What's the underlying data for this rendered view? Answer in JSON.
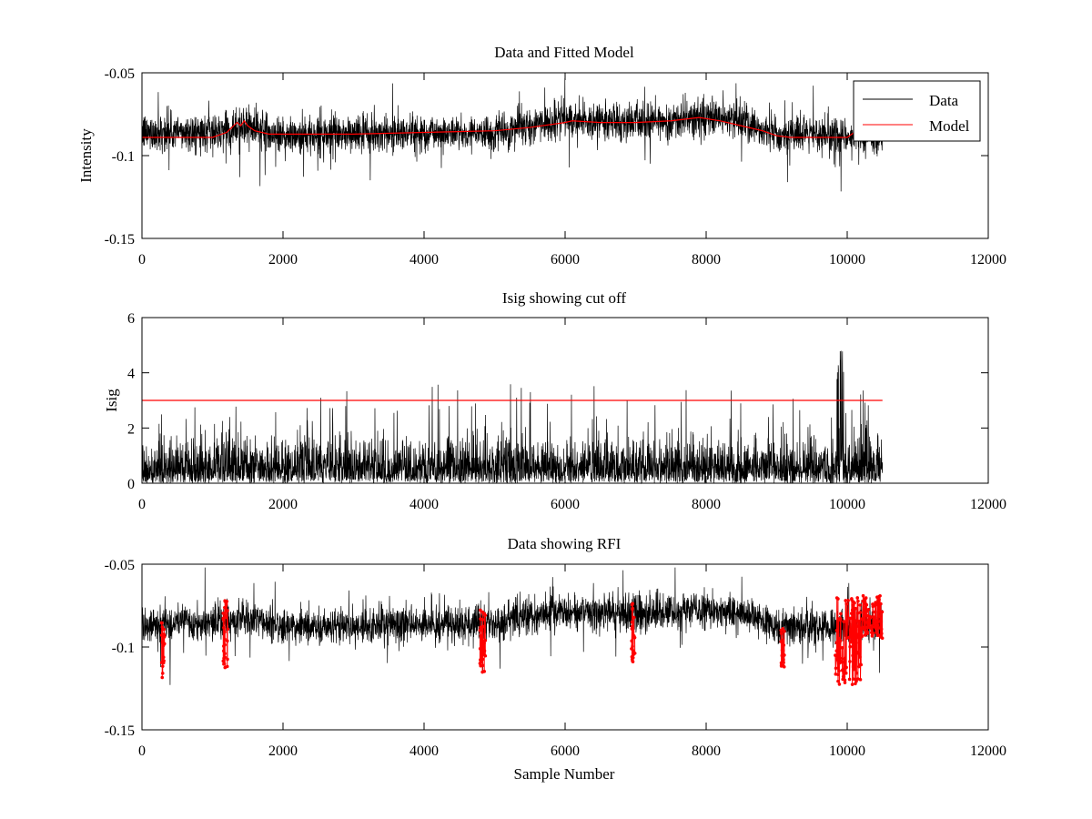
{
  "chart_data": [
    {
      "type": "line",
      "title": "Data and Fitted Model",
      "xlabel": "",
      "ylabel": "Intensity",
      "xlim": [
        0,
        12000
      ],
      "ylim": [
        -0.15,
        -0.05
      ],
      "y_reversed": true,
      "xticks": [
        0,
        2000,
        4000,
        6000,
        8000,
        10000,
        12000
      ],
      "xtick_labels": [
        "0",
        "2000",
        "4000",
        "6000",
        "8000",
        "10000",
        "12000"
      ],
      "yticks": [
        -0.05,
        -0.1,
        -0.15
      ],
      "ytick_labels": [
        "-0.05",
        "-0.1",
        "-0.15"
      ],
      "legend_position": "top-right",
      "series": [
        {
          "name": "Data",
          "color": "#000000",
          "style": "dense-noise",
          "n_samples": 10500,
          "noise_std": 0.008,
          "spike_sample_to": -0.122,
          "baseline_points": [
            [
              0,
              -0.086
            ],
            [
              1000,
              -0.086
            ],
            [
              1300,
              -0.083
            ],
            [
              1450,
              -0.081
            ],
            [
              1700,
              -0.085
            ],
            [
              2000,
              -0.088
            ],
            [
              3000,
              -0.087
            ],
            [
              4000,
              -0.086
            ],
            [
              5000,
              -0.086
            ],
            [
              6000,
              -0.078
            ],
            [
              6500,
              -0.079
            ],
            [
              7000,
              -0.08
            ],
            [
              7500,
              -0.079
            ],
            [
              8000,
              -0.077
            ],
            [
              8500,
              -0.079
            ],
            [
              9000,
              -0.088
            ],
            [
              10000,
              -0.088
            ],
            [
              10500,
              -0.088
            ]
          ]
        },
        {
          "name": "Model",
          "color": "#ff0000",
          "style": "line",
          "x": [
            0,
            500,
            1000,
            1200,
            1300,
            1350,
            1400,
            1450,
            1500,
            1600,
            1800,
            2000,
            3000,
            4000,
            5000,
            5500,
            6000,
            6100,
            6500,
            7000,
            7500,
            7900,
            8200,
            8500,
            8800,
            9000,
            9200,
            9600,
            10000,
            10100
          ],
          "y": [
            -0.089,
            -0.089,
            -0.089,
            -0.086,
            -0.082,
            -0.08,
            -0.082,
            -0.079,
            -0.082,
            -0.085,
            -0.087,
            -0.087,
            -0.087,
            -0.086,
            -0.085,
            -0.083,
            -0.08,
            -0.079,
            -0.08,
            -0.08,
            -0.079,
            -0.077,
            -0.079,
            -0.082,
            -0.085,
            -0.088,
            -0.089,
            -0.089,
            -0.089,
            -0.086
          ]
        }
      ]
    },
    {
      "type": "line",
      "title": "Isig showing cut off",
      "xlabel": "",
      "ylabel": "Isig",
      "xlim": [
        0,
        12000
      ],
      "ylim": [
        0,
        6
      ],
      "xticks": [
        0,
        2000,
        4000,
        6000,
        8000,
        10000,
        12000
      ],
      "xtick_labels": [
        "0",
        "2000",
        "4000",
        "6000",
        "8000",
        "10000",
        "12000"
      ],
      "yticks": [
        0,
        2,
        4,
        6
      ],
      "ytick_labels": [
        "0",
        "2",
        "4",
        "6"
      ],
      "series": [
        {
          "color": "#000000",
          "style": "abs-noise",
          "n_samples": 10500,
          "typical_max": 2.5,
          "peak_value": 4.9
        },
        {
          "color": "#ff0000",
          "style": "line",
          "x": [
            0,
            10500
          ],
          "y": [
            3,
            3
          ]
        }
      ]
    },
    {
      "type": "line",
      "title": "Data showing RFI",
      "xlabel": "Sample Number",
      "ylabel": "",
      "xlim": [
        0,
        12000
      ],
      "ylim": [
        -0.15,
        -0.05
      ],
      "y_reversed": true,
      "xticks": [
        0,
        2000,
        4000,
        6000,
        8000,
        10000,
        12000
      ],
      "xtick_labels": [
        "0",
        "2000",
        "4000",
        "6000",
        "8000",
        "10000",
        "12000"
      ],
      "yticks": [
        -0.05,
        -0.1,
        -0.15
      ],
      "ytick_labels": [
        "-0.05",
        "-0.1",
        "-0.15"
      ],
      "series": [
        {
          "color": "#000000",
          "style": "dense-noise",
          "n_samples": 10500,
          "noise_std": 0.008,
          "baseline_points": [
            [
              0,
              -0.086
            ],
            [
              1000,
              -0.086
            ],
            [
              1300,
              -0.083
            ],
            [
              1450,
              -0.081
            ],
            [
              1700,
              -0.085
            ],
            [
              2000,
              -0.088
            ],
            [
              3000,
              -0.087
            ],
            [
              4000,
              -0.086
            ],
            [
              5000,
              -0.086
            ],
            [
              6000,
              -0.078
            ],
            [
              6500,
              -0.079
            ],
            [
              7000,
              -0.08
            ],
            [
              7500,
              -0.079
            ],
            [
              8000,
              -0.077
            ],
            [
              8500,
              -0.079
            ],
            [
              9000,
              -0.088
            ],
            [
              10000,
              -0.088
            ],
            [
              10500,
              -0.085
            ]
          ]
        },
        {
          "color": "#ff0000",
          "style": "markers",
          "clusters": [
            {
              "x_range": [
                270,
                320
              ],
              "y_range": [
                -0.121,
                -0.085
              ]
            },
            {
              "x_range": [
                1150,
                1220
              ],
              "y_range": [
                -0.114,
                -0.072
              ]
            },
            {
              "x_range": [
                4790,
                4870
              ],
              "y_range": [
                -0.116,
                -0.077
              ]
            },
            {
              "x_range": [
                6940,
                6990
              ],
              "y_range": [
                -0.111,
                -0.072
              ]
            },
            {
              "x_range": [
                9060,
                9110
              ],
              "y_range": [
                -0.112,
                -0.087
              ]
            },
            {
              "x_range": [
                9830,
                10200
              ],
              "y_range": [
                -0.123,
                -0.07
              ]
            },
            {
              "x_range": [
                10200,
                10500
              ],
              "y_range": [
                -0.095,
                -0.069
              ]
            }
          ]
        }
      ]
    }
  ]
}
